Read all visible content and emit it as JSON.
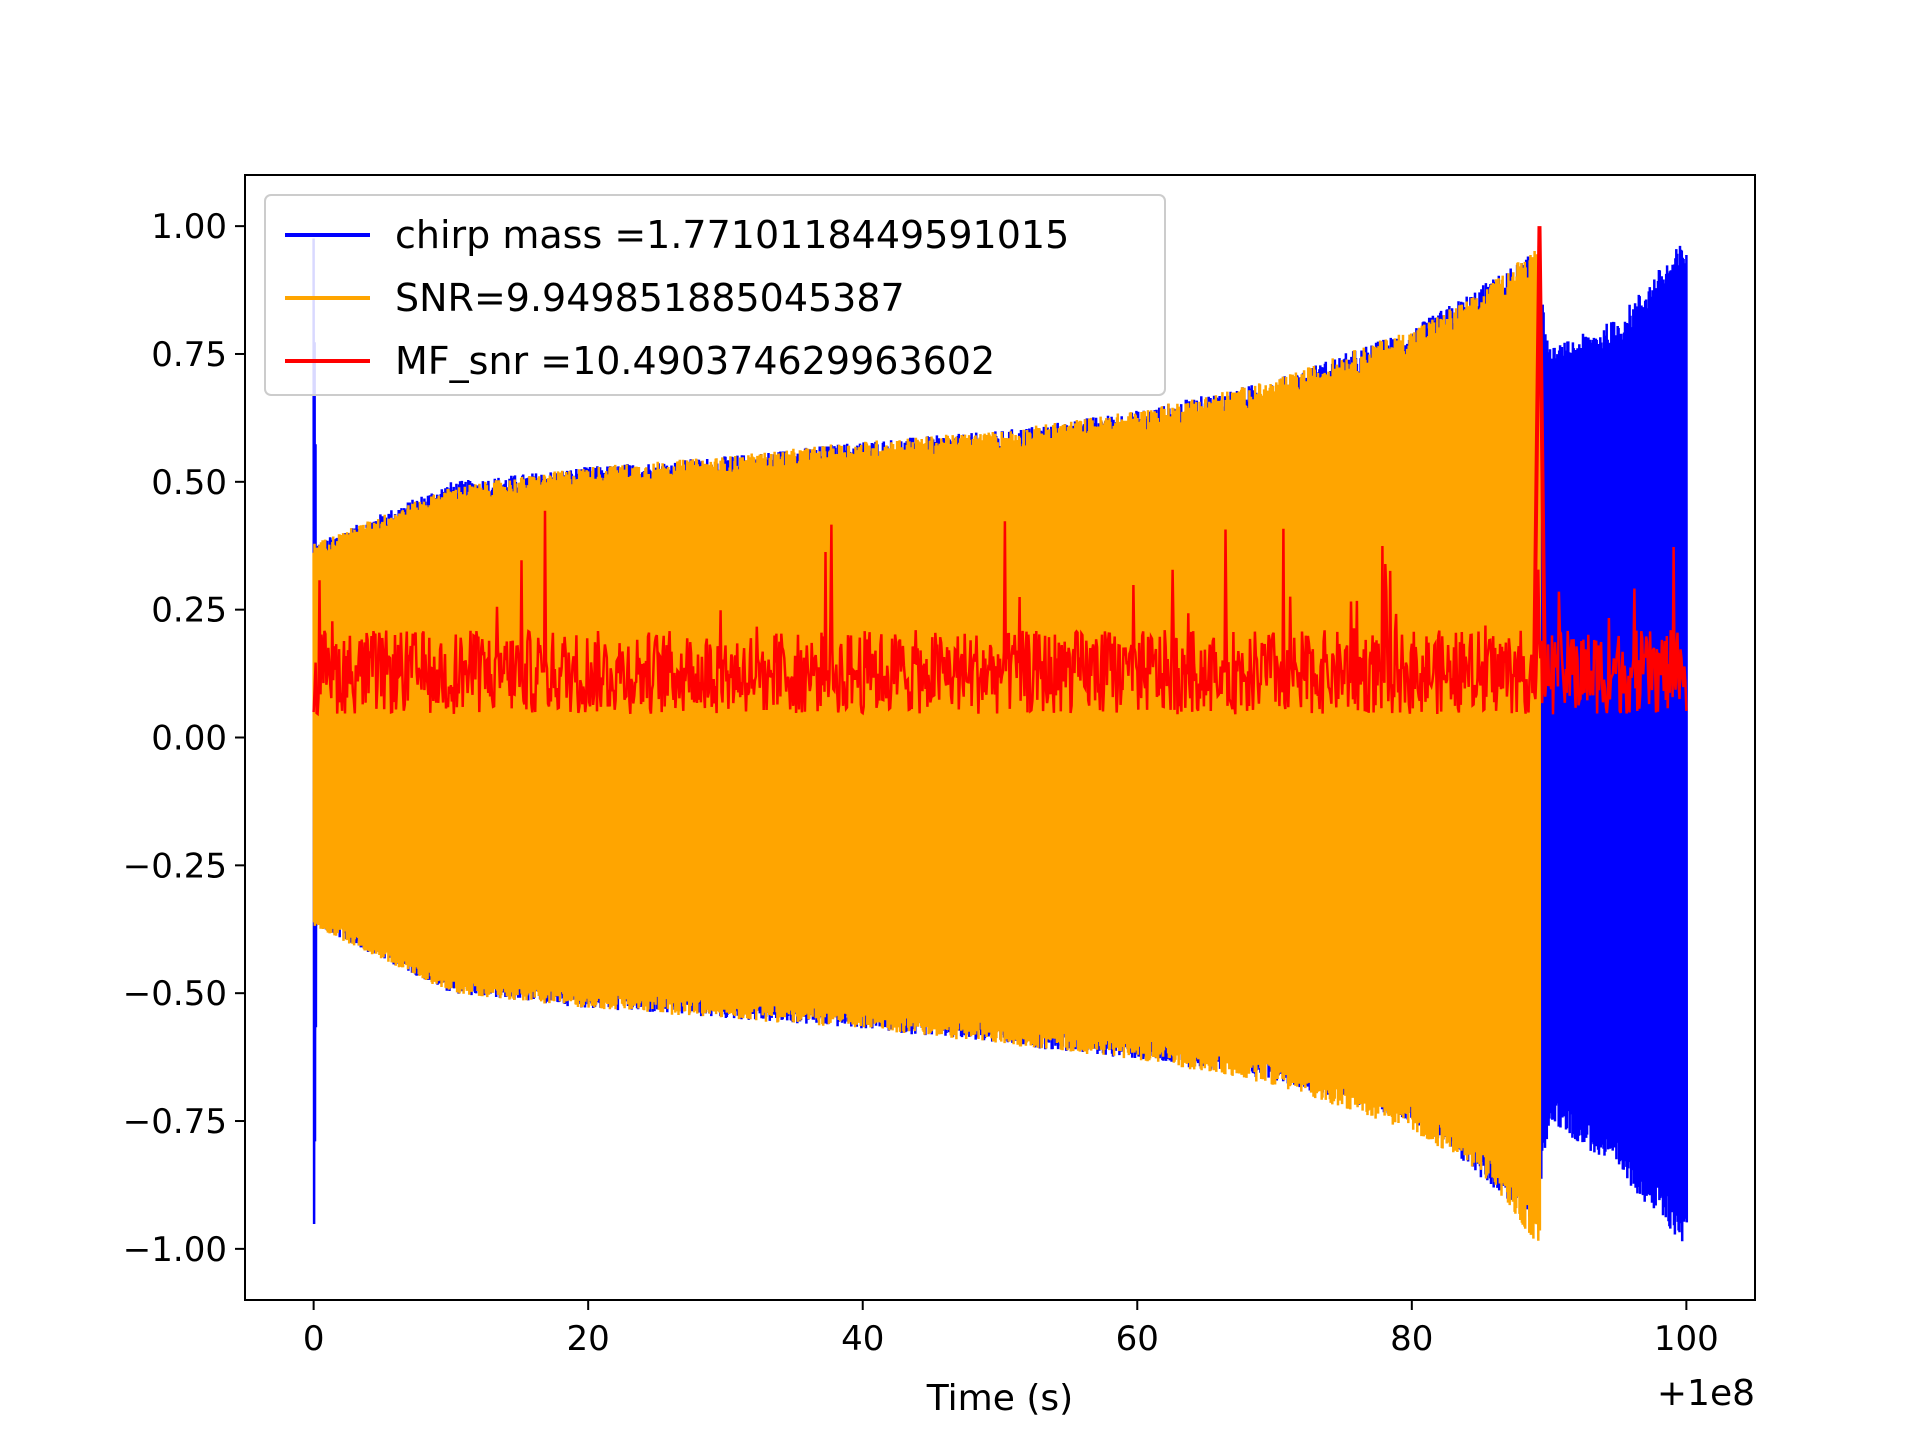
{
  "chart_data": {
    "type": "line",
    "title": "",
    "xlabel": "Time (s)",
    "ylabel": "",
    "x_offset_label": "+1e8",
    "xlim": [
      -5,
      105
    ],
    "ylim": [
      -1.1,
      1.1
    ],
    "x_ticks": [
      0,
      20,
      40,
      60,
      80,
      100
    ],
    "x_tick_labels": [
      "0",
      "20",
      "40",
      "60",
      "80",
      "100"
    ],
    "y_ticks": [
      1.0,
      0.75,
      0.5,
      0.25,
      0.0,
      -0.25,
      -0.5,
      -0.75,
      -1.0
    ],
    "y_tick_labels": [
      "1.00",
      "0.75",
      "0.50",
      "0.25",
      "0.00",
      "−0.25",
      "−0.50",
      "−0.75",
      "−1.00"
    ],
    "grid": false,
    "legend_position": "upper-left",
    "series": [
      {
        "name": "chirp mass =1.7710118449591015",
        "color": "#0000ff",
        "x": [
          0,
          0.2,
          10,
          20,
          30,
          40,
          50,
          60,
          70,
          80,
          89,
          90,
          95,
          100
        ],
        "upper": [
          1.0,
          0.38,
          0.5,
          0.53,
          0.55,
          0.58,
          0.6,
          0.64,
          0.7,
          0.8,
          0.95,
          0.76,
          0.82,
          0.98
        ],
        "lower": [
          -1.0,
          -0.37,
          -0.5,
          -0.53,
          -0.55,
          -0.57,
          -0.6,
          -0.63,
          -0.67,
          -0.75,
          -0.95,
          -0.75,
          -0.85,
          -1.0
        ]
      },
      {
        "name": "SNR=9.949851885045387",
        "color": "#ffa500",
        "x": [
          0,
          10,
          20,
          30,
          40,
          50,
          60,
          70,
          80,
          85,
          89.3
        ],
        "upper": [
          0.38,
          0.49,
          0.53,
          0.55,
          0.58,
          0.6,
          0.64,
          0.7,
          0.8,
          0.87,
          0.97
        ],
        "lower": [
          -0.37,
          -0.5,
          -0.53,
          -0.55,
          -0.57,
          -0.6,
          -0.63,
          -0.68,
          -0.77,
          -0.85,
          -1.0
        ]
      },
      {
        "name": "MF_snr =10.490374629963602",
        "color": "#ff0000",
        "x": [
          0,
          100
        ],
        "band": [
          0.0,
          0.3
        ],
        "peak": {
          "x": 89.3,
          "y": 1.0
        }
      }
    ]
  }
}
